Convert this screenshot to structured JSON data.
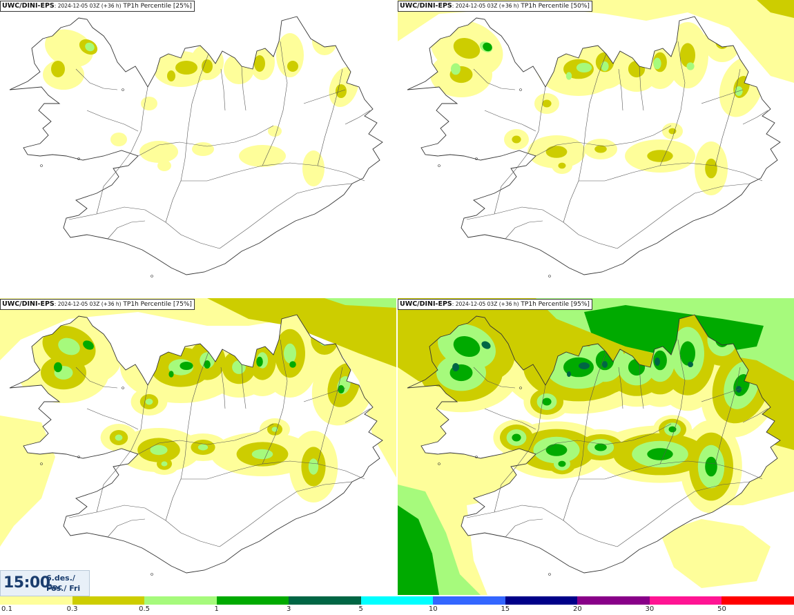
{
  "panels": [
    {
      "id": "p1",
      "source": "UWC/DINI-EPS",
      "run_info": ": 2024-12-05 03Z (+36 h)",
      "product": "TP1h Percentile [25%]",
      "level": 1
    },
    {
      "id": "p2",
      "source": "UWC/DINI-EPS",
      "run_info": ": 2024-12-05 03Z (+36 h)",
      "product": "TP1h Percentile [50%]",
      "level": 2
    },
    {
      "id": "p3",
      "source": "UWC/DINI-EPS",
      "run_info": ": 2024-12-05 03Z (+36 h)",
      "product": "TP1h Percentile [75%]",
      "level": 3
    },
    {
      "id": "p4",
      "source": "UWC/DINI-EPS",
      "run_info": ": 2024-12-05 03Z (+36 h)",
      "product": "TP1h Percentile [95%]",
      "level": 4
    }
  ],
  "valid_time": {
    "time": "15:00",
    "date_line1": "6.des./ Dec",
    "date_line2": "Fös./ Fri"
  },
  "colorbar": {
    "colors": [
      "#fefe9a",
      "#cdcd00",
      "#a6fa7c",
      "#00aa00",
      "#006644",
      "#00ffff",
      "#3366ff",
      "#000088",
      "#880088",
      "#ff1493",
      "#ff0000"
    ],
    "labels": [
      "0.1",
      "0.3",
      "0.5",
      "1",
      "3",
      "5",
      "10",
      "15",
      "20",
      "30",
      "50"
    ]
  },
  "legend_colors": {
    "light_yellow": "#fefe9a",
    "olive": "#cdcd00",
    "light_green": "#a6fa7c",
    "green": "#00aa00",
    "dark_green": "#006644",
    "coast": "#333333"
  }
}
